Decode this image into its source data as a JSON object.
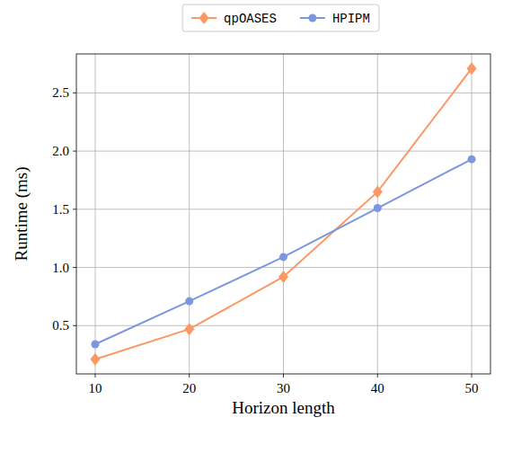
{
  "chart_data": {
    "type": "line",
    "x_label": "Horizon length",
    "y_label": "Runtime (ms)",
    "x": [
      10,
      20,
      30,
      40,
      50
    ],
    "series": [
      {
        "name": "qpOASES",
        "color": "#fb9966",
        "marker": "diamond",
        "values": [
          0.21,
          0.47,
          0.92,
          1.65,
          2.71
        ]
      },
      {
        "name": "HPIPM",
        "color": "#7d96e0",
        "marker": "circle",
        "values": [
          0.34,
          0.71,
          1.09,
          1.51,
          1.93
        ]
      }
    ],
    "xlim": [
      8,
      52
    ],
    "xticks": [
      10,
      20,
      30,
      40,
      50
    ],
    "ylim": [
      0.085,
      2.835
    ],
    "yticks": [
      0.5,
      {
        "value": 1,
        "label": "1.0"
      },
      1.5,
      {
        "value": 2,
        "label": "2.0"
      },
      2.5
    ],
    "grid": true,
    "legend": "top"
  }
}
